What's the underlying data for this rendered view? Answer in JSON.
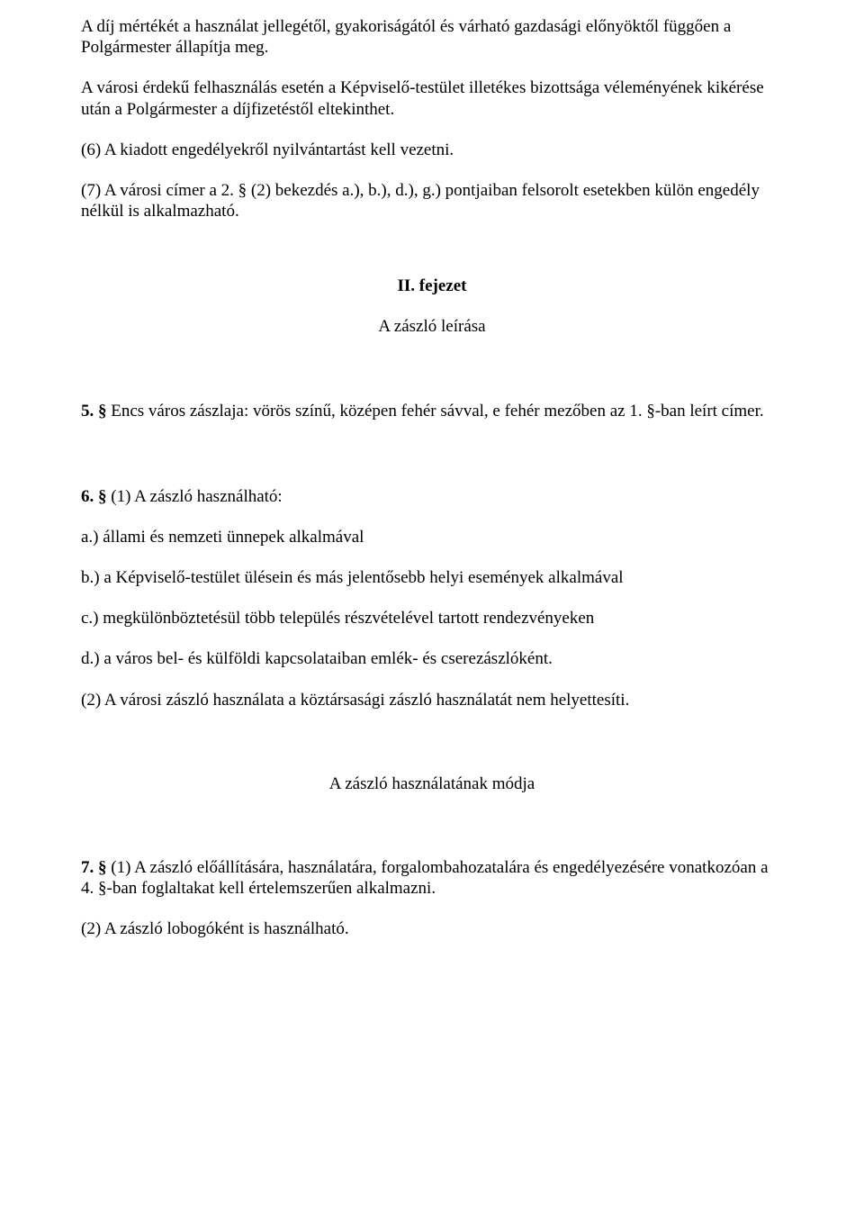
{
  "p1": "A díj mértékét a használat jellegétől, gyakoriságától és várható gazdasági előnyöktől függően a Polgármester állapítja meg.",
  "p2": "A városi érdekű felhasználás esetén a Képviselő-testület illetékes bizottsága véleményének kikérése után a Polgármester a díjfizetéstől eltekinthet.",
  "p3": "(6) A kiadott engedélyekről nyilvántartást kell vezetni.",
  "p4": "(7) A városi címer a 2. § (2) bekezdés a.), b.), d.), g.) pontjaiban felsorolt esetekben külön engedély nélkül is alkalmazható.",
  "chapter2_title": "II. fejezet",
  "chapter2_sub": "A zászló leírása",
  "s5_lead": "5. §",
  "s5_text": " Encs város zászlaja: vörös színű, középen fehér sávval, e fehér mezőben az 1. §-ban leírt címer.",
  "s6_lead": "6. §",
  "s6_text": " (1) A zászló használható:",
  "s6_a": "a.) állami és nemzeti ünnepek alkalmával",
  "s6_b": "b.) a Képviselő-testület ülésein és más jelentősebb helyi események alkalmával",
  "s6_c": "c.) megkülönböztetésül több település részvételével tartott rendezvényeken",
  "s6_d": "d.) a város bel- és külföldi kapcsolataiban emlék- és cserezászlóként.",
  "s6_2": "(2) A városi zászló használata a köztársasági zászló használatát nem helyettesíti.",
  "section_title": "A zászló használatának módja",
  "s7_lead": "7. §",
  "s7_text": " (1) A zászló előállítására, használatára, forgalombahozatalára és engedélyezésére vonatkozóan a 4. §-ban foglaltakat kell értelemszerűen alkalmazni.",
  "s7_2": "(2) A zászló lobogóként is használható."
}
